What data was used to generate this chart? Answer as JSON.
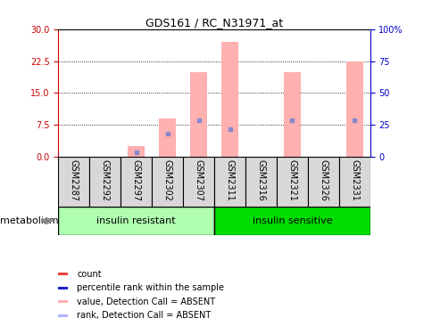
{
  "title": "GDS161 / RC_N31971_at",
  "samples": [
    "GSM2287",
    "GSM2292",
    "GSM2297",
    "GSM2302",
    "GSM2307",
    "GSM2311",
    "GSM2316",
    "GSM2321",
    "GSM2326",
    "GSM2331"
  ],
  "pink_values": [
    0,
    0,
    2.5,
    9.0,
    20.0,
    27.0,
    0,
    20.0,
    0,
    22.5
  ],
  "blue_ranks": [
    null,
    null,
    1.0,
    5.5,
    8.5,
    6.5,
    null,
    8.5,
    null,
    8.5
  ],
  "ylim_left": [
    0,
    30
  ],
  "ylim_right": [
    0,
    100
  ],
  "yticks_left": [
    0,
    7.5,
    15,
    22.5,
    30
  ],
  "yticks_right": [
    0,
    25,
    50,
    75,
    100
  ],
  "yticklabels_right": [
    "0",
    "25",
    "50",
    "75",
    "100%"
  ],
  "group1_label": "insulin resistant",
  "group2_label": "insulin sensitive",
  "group1_indices": [
    0,
    1,
    2,
    3,
    4
  ],
  "group2_indices": [
    5,
    6,
    7,
    8,
    9
  ],
  "metabolism_label": "metabolism",
  "legend_items": [
    {
      "color": "#e84040",
      "label": "count"
    },
    {
      "color": "#2020cc",
      "label": "percentile rank within the sample"
    },
    {
      "color": "#ffb0b0",
      "label": "value, Detection Call = ABSENT"
    },
    {
      "color": "#b0b0ff",
      "label": "rank, Detection Call = ABSENT"
    }
  ],
  "bar_width": 0.55,
  "pink_color": "#ffb0b0",
  "blue_dot_color": "#8888cc",
  "group1_color": "#b0ffb0",
  "group2_color": "#00dd00",
  "left_color": "#cc0000",
  "right_color": "#0000cc",
  "tick_label_fontsize": 7,
  "sample_label_fontsize": 7,
  "group_label_fontsize": 8
}
